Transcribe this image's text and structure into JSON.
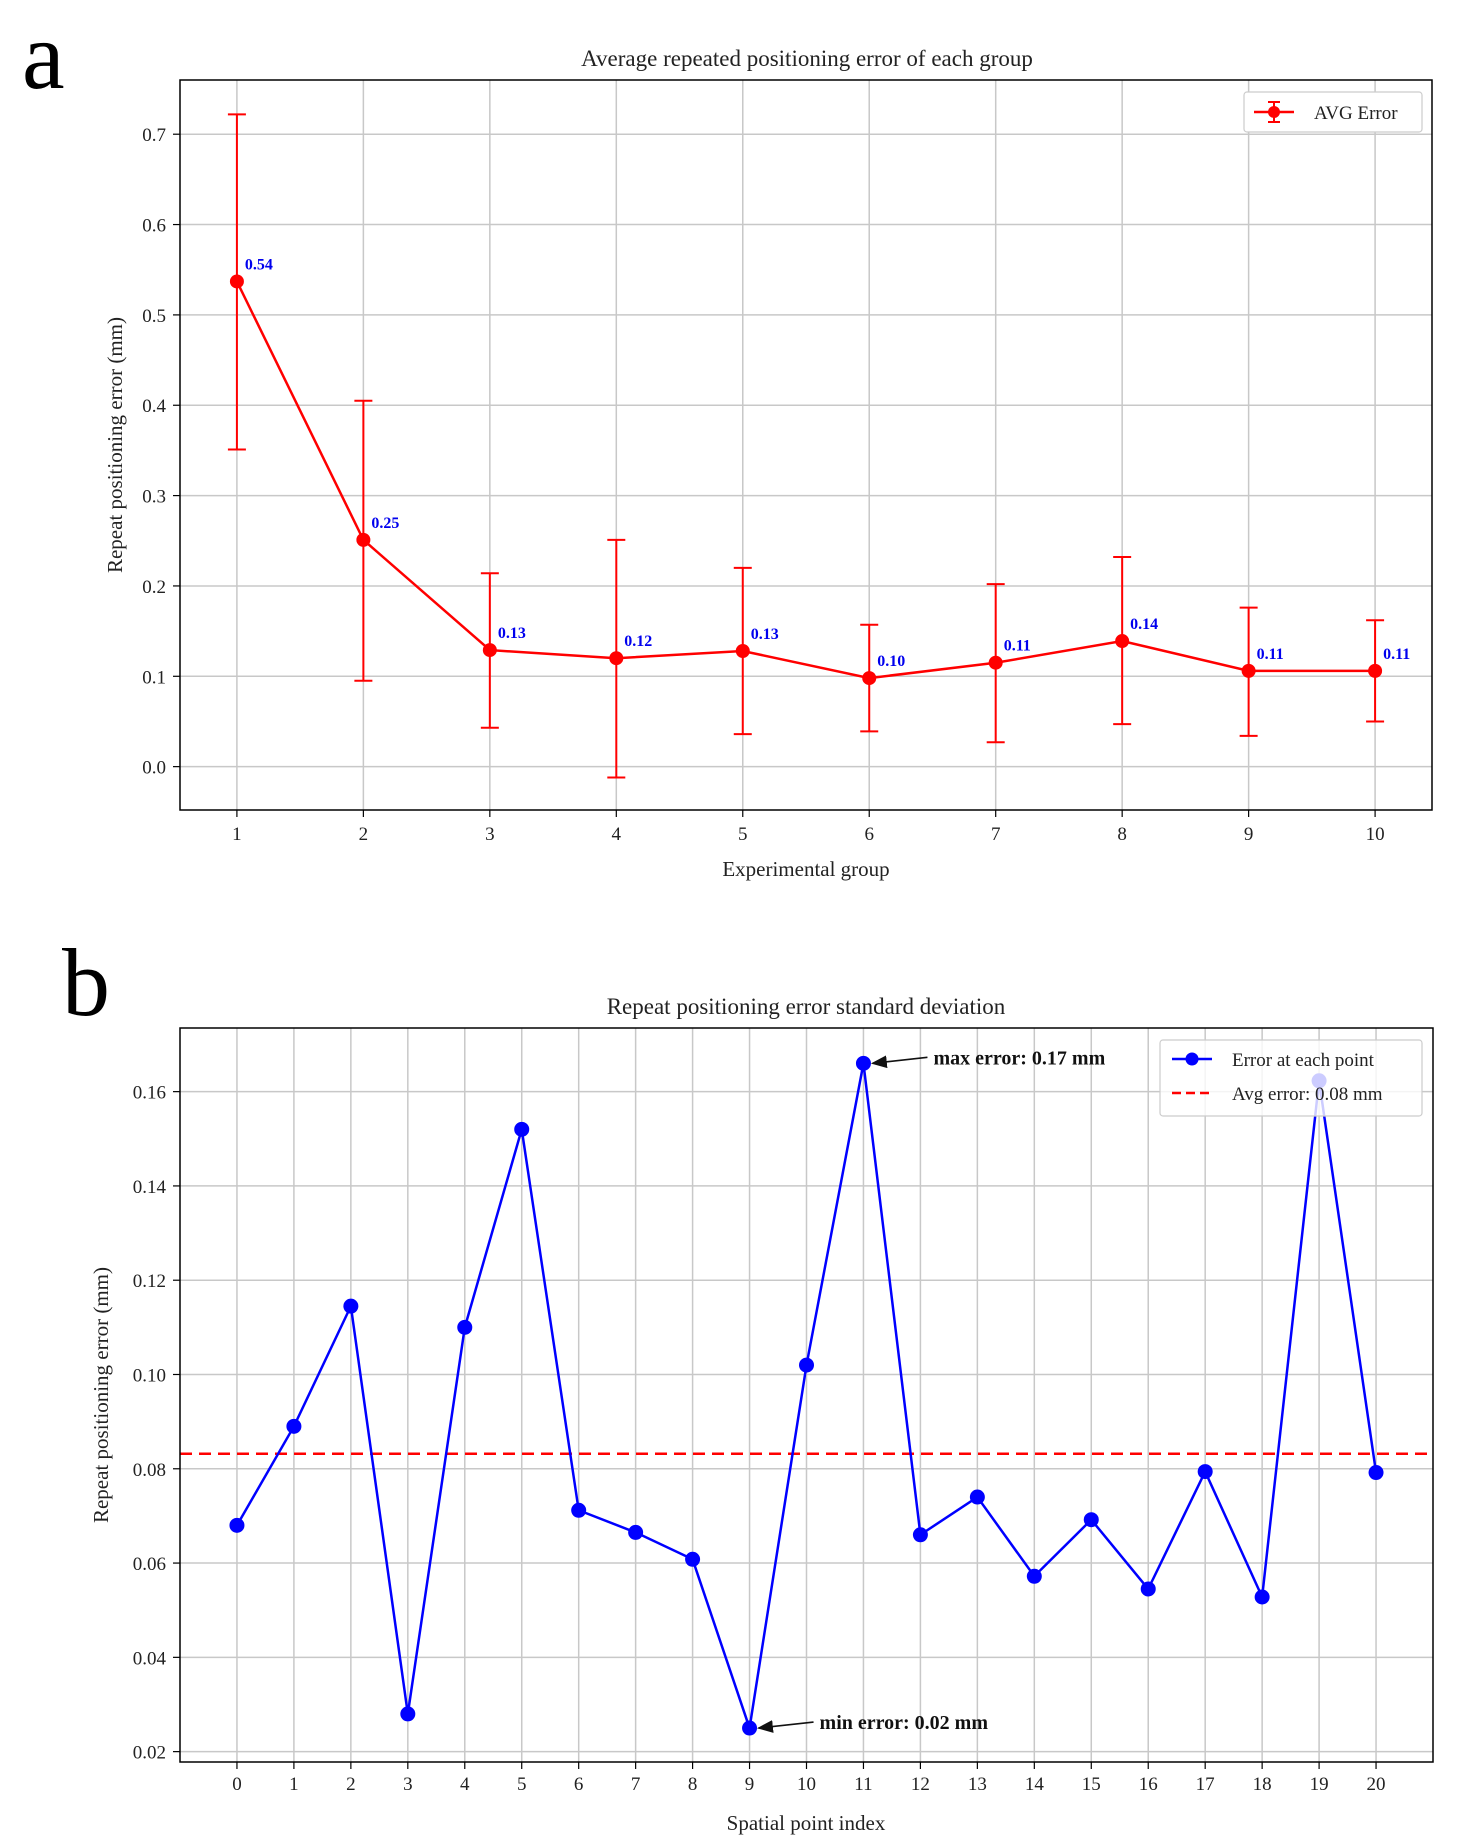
{
  "panels": {
    "a": {
      "letter": "a"
    },
    "b": {
      "letter": "b"
    }
  },
  "chart_data": [
    {
      "type": "line",
      "title": "Average repeated positioning error of each group",
      "xlabel": "Experimental group",
      "ylabel": "Repeat positioning error (mm)",
      "x": [
        1,
        2,
        3,
        4,
        5,
        6,
        7,
        8,
        9,
        10
      ],
      "xlim": [
        0.55,
        10.45
      ],
      "ylim": [
        -0.048,
        0.76
      ],
      "yticks": [
        0.0,
        0.1,
        0.2,
        0.3,
        0.4,
        0.5,
        0.6,
        0.7
      ],
      "ytick_labels": [
        "0.0",
        "0.1",
        "0.2",
        "0.3",
        "0.4",
        "0.5",
        "0.6",
        "0.7"
      ],
      "xtick_labels": [
        "1",
        "2",
        "3",
        "4",
        "5",
        "6",
        "7",
        "8",
        "9",
        "10"
      ],
      "grid": true,
      "legend_position": "top-right",
      "series": [
        {
          "name": "AVG Error",
          "color": "#ff0000",
          "values": [
            0.537,
            0.251,
            0.129,
            0.12,
            0.128,
            0.098,
            0.115,
            0.139,
            0.106,
            0.106
          ],
          "err_lower": [
            0.351,
            0.095,
            0.043,
            -0.012,
            0.036,
            0.039,
            0.027,
            0.047,
            0.034,
            0.05
          ],
          "err_upper": [
            0.722,
            0.405,
            0.214,
            0.251,
            0.22,
            0.157,
            0.202,
            0.232,
            0.176,
            0.162
          ]
        }
      ],
      "data_labels": [
        "0.54",
        "0.25",
        "0.13",
        "0.12",
        "0.13",
        "0.10",
        "0.11",
        "0.14",
        "0.11",
        "0.11"
      ],
      "data_label_color": "#0000ee"
    },
    {
      "type": "line",
      "title": "Repeat positioning error standard deviation",
      "xlabel": "Spatial point index",
      "ylabel": "Repeat positioning error (mm)",
      "x": [
        0,
        1,
        2,
        3,
        4,
        5,
        6,
        7,
        8,
        9,
        10,
        11,
        12,
        13,
        14,
        15,
        16,
        17,
        18,
        19,
        20
      ],
      "xlim": [
        -1.0,
        21.0
      ],
      "ylim": [
        0.0178,
        0.1735
      ],
      "yticks": [
        0.02,
        0.04,
        0.06,
        0.08,
        0.1,
        0.12,
        0.14,
        0.16
      ],
      "ytick_labels": [
        "0.02",
        "0.04",
        "0.06",
        "0.08",
        "0.10",
        "0.12",
        "0.14",
        "0.16"
      ],
      "xtick_labels": [
        "0",
        "1",
        "2",
        "3",
        "4",
        "5",
        "6",
        "7",
        "8",
        "9",
        "10",
        "11",
        "12",
        "13",
        "14",
        "15",
        "16",
        "17",
        "18",
        "19",
        "20"
      ],
      "grid": true,
      "legend_position": "top-right",
      "series": [
        {
          "name": "Error at each point",
          "color": "#0000ff",
          "values": [
            0.068,
            0.089,
            0.1145,
            0.028,
            0.11,
            0.152,
            0.0712,
            0.0665,
            0.0608,
            0.025,
            0.102,
            0.166,
            0.066,
            0.074,
            0.0572,
            0.0692,
            0.0545,
            0.0794,
            0.0528,
            0.1623,
            0.0792
          ]
        }
      ],
      "reference_lines": [
        {
          "name": "Avg error: 0.08 mm",
          "value": 0.0832,
          "color": "#ff0000",
          "style": "dashed"
        }
      ],
      "annotations": [
        {
          "text": "max error: 0.17 mm",
          "x": 11,
          "y": 0.166
        },
        {
          "text": "min error: 0.02 mm",
          "x": 9,
          "y": 0.025
        }
      ]
    }
  ]
}
